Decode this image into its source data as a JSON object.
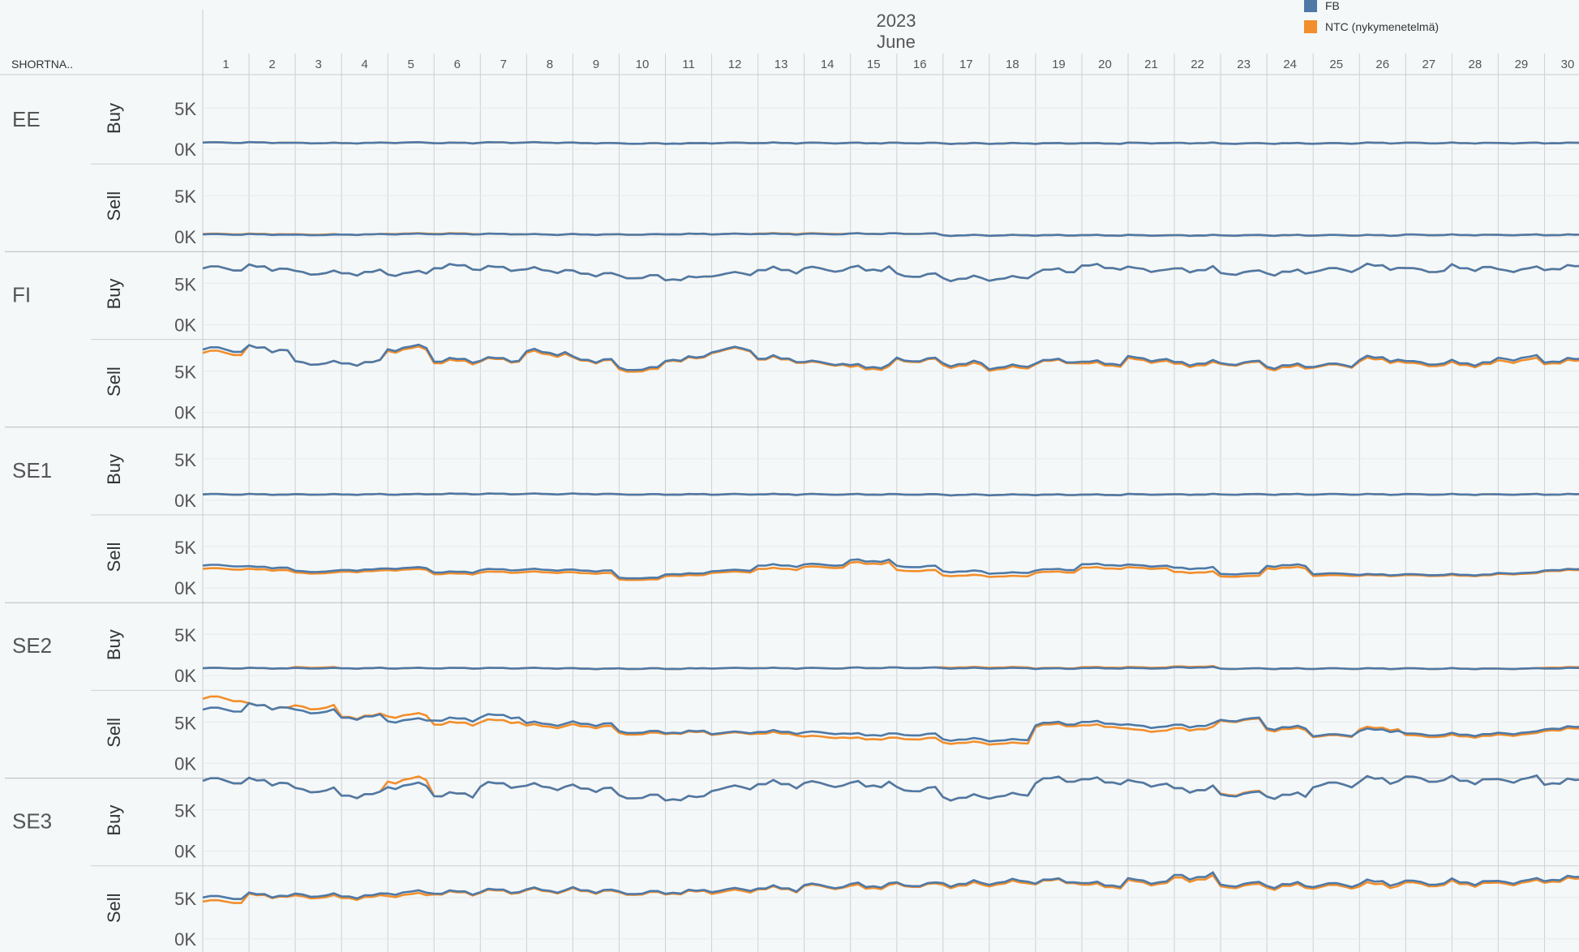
{
  "chart_data": {
    "type": "line",
    "title": "",
    "header_year": "2023",
    "header_month": "June",
    "row_field_label": "SHORTNA..",
    "days": [
      "1",
      "2",
      "3",
      "4",
      "5",
      "6",
      "7",
      "8",
      "9",
      "10",
      "11",
      "12",
      "13",
      "14",
      "15",
      "16",
      "17",
      "18",
      "19",
      "20",
      "21",
      "22",
      "23",
      "24",
      "25",
      "26",
      "27",
      "28",
      "29",
      "30"
    ],
    "y_ticks": [
      "5K",
      "0K"
    ],
    "y_range": [
      0,
      10000
    ],
    "legend": [
      {
        "name": "FB",
        "color": "#4e79a7"
      },
      {
        "name": "NTC (nykymenetelmä)",
        "color": "#f28e2b"
      }
    ],
    "series_colors": {
      "FB": "#4e79a7",
      "NTC": "#f28e2b"
    },
    "panels": [
      {
        "area": "EE",
        "direction": "Buy",
        "fb_daily": [
          800,
          800,
          750,
          750,
          800,
          750,
          800,
          800,
          750,
          700,
          700,
          750,
          750,
          750,
          750,
          750,
          700,
          700,
          700,
          700,
          750,
          750,
          700,
          700,
          700,
          750,
          750,
          750,
          750,
          750
        ],
        "ntc_daily": [
          800,
          800,
          750,
          750,
          800,
          750,
          800,
          800,
          750,
          700,
          700,
          750,
          750,
          750,
          750,
          750,
          700,
          700,
          700,
          700,
          750,
          750,
          700,
          700,
          700,
          750,
          750,
          750,
          750,
          750
        ]
      },
      {
        "area": "EE",
        "direction": "Sell",
        "fb_daily": [
          300,
          300,
          250,
          300,
          350,
          350,
          350,
          300,
          300,
          300,
          350,
          350,
          350,
          350,
          400,
          400,
          200,
          200,
          200,
          200,
          200,
          200,
          200,
          200,
          200,
          200,
          250,
          250,
          250,
          250
        ],
        "ntc_daily": [
          350,
          350,
          300,
          300,
          400,
          400,
          350,
          300,
          300,
          300,
          350,
          350,
          400,
          400,
          400,
          400,
          200,
          200,
          200,
          200,
          200,
          200,
          200,
          200,
          200,
          200,
          250,
          250,
          250,
          250
        ]
      },
      {
        "area": "FI",
        "direction": "Buy",
        "fb_daily": [
          6800,
          6900,
          6300,
          6300,
          6200,
          7000,
          6800,
          6600,
          6200,
          5800,
          5600,
          6100,
          6600,
          6700,
          6800,
          6000,
          5600,
          5600,
          6500,
          7000,
          6700,
          6700,
          6300,
          6300,
          6600,
          7000,
          6600,
          6900,
          6700,
          6900
        ],
        "ntc_daily": [
          6800,
          6900,
          6300,
          6300,
          6200,
          7000,
          6800,
          6600,
          6200,
          5800,
          5600,
          6100,
          6600,
          6700,
          6800,
          6000,
          5600,
          5600,
          6500,
          7000,
          6700,
          6700,
          6300,
          6300,
          6600,
          7000,
          6600,
          6900,
          6700,
          6900
        ]
      },
      {
        "area": "FI",
        "direction": "Sell",
        "fb_daily": [
          7600,
          7700,
          6000,
          6000,
          7800,
          6300,
          6400,
          7300,
          6400,
          5300,
          6500,
          7600,
          6500,
          6000,
          5600,
          6400,
          5900,
          5500,
          6200,
          6000,
          6500,
          6000,
          6000,
          5600,
          5700,
          6500,
          6000,
          6000,
          6600,
          6300
        ],
        "ntc_daily": [
          7200,
          7700,
          6000,
          6000,
          7600,
          6100,
          6300,
          7100,
          6300,
          5100,
          6400,
          7500,
          6400,
          5900,
          5400,
          6300,
          5700,
          5300,
          6100,
          5800,
          6300,
          5800,
          5900,
          5400,
          5600,
          6300,
          5800,
          5800,
          6300,
          6100
        ]
      },
      {
        "area": "SE1",
        "direction": "Buy",
        "fb_daily": [
          700,
          700,
          700,
          700,
          700,
          750,
          750,
          750,
          750,
          700,
          700,
          700,
          700,
          700,
          700,
          700,
          650,
          650,
          650,
          650,
          700,
          700,
          700,
          700,
          700,
          700,
          700,
          700,
          700,
          700
        ],
        "ntc_daily": [
          700,
          700,
          700,
          700,
          700,
          750,
          750,
          750,
          750,
          700,
          700,
          700,
          700,
          700,
          700,
          700,
          650,
          650,
          650,
          650,
          700,
          700,
          700,
          700,
          700,
          700,
          700,
          700,
          700,
          700
        ]
      },
      {
        "area": "SE1",
        "direction": "Sell",
        "fb_daily": [
          2700,
          2500,
          2000,
          2200,
          2400,
          1900,
          2200,
          2200,
          2100,
          1200,
          1700,
          2100,
          2700,
          2800,
          3300,
          2600,
          2000,
          1800,
          2200,
          2800,
          2700,
          2400,
          1700,
          2700,
          1700,
          1600,
          1600,
          1600,
          1800,
          2200
        ],
        "ntc_daily": [
          2300,
          2200,
          1800,
          2000,
          2200,
          1700,
          1900,
          1900,
          1800,
          1000,
          1500,
          1900,
          2300,
          2500,
          3000,
          2100,
          1500,
          1400,
          1900,
          2400,
          2400,
          1900,
          1400,
          2400,
          1500,
          1500,
          1500,
          1500,
          1700,
          2100
        ]
      },
      {
        "area": "SE2",
        "direction": "Buy",
        "fb_daily": [
          900,
          900,
          900,
          900,
          900,
          900,
          900,
          900,
          850,
          850,
          850,
          900,
          900,
          900,
          950,
          950,
          900,
          900,
          850,
          900,
          900,
          1000,
          850,
          850,
          850,
          850,
          850,
          850,
          850,
          900
        ],
        "ntc_daily": [
          900,
          900,
          1000,
          900,
          900,
          900,
          900,
          900,
          850,
          850,
          850,
          900,
          900,
          900,
          950,
          950,
          1000,
          1000,
          900,
          1000,
          1000,
          1100,
          850,
          850,
          850,
          850,
          850,
          850,
          850,
          1000
        ]
      },
      {
        "area": "SE2",
        "direction": "Sell",
        "fb_daily": [
          6500,
          6900,
          6300,
          5600,
          5200,
          5300,
          5700,
          4800,
          4800,
          3800,
          3800,
          3700,
          3800,
          3700,
          3500,
          3500,
          2900,
          2800,
          4800,
          4900,
          4500,
          4600,
          5300,
          4300,
          3400,
          4000,
          3500,
          3500,
          3700,
          4300
        ],
        "ntc_daily": [
          7800,
          6900,
          6800,
          5700,
          5800,
          4800,
          5100,
          4500,
          4500,
          3600,
          3700,
          3600,
          3600,
          3200,
          3000,
          3000,
          2500,
          2400,
          4600,
          4500,
          4000,
          4200,
          5200,
          4100,
          3300,
          4200,
          3300,
          3300,
          3500,
          4100
        ]
      },
      {
        "area": "SE3",
        "direction": "Buy",
        "fb_daily": [
          8500,
          8400,
          7400,
          6800,
          7900,
          6800,
          8000,
          7800,
          7600,
          6600,
          6400,
          7600,
          8100,
          8100,
          8100,
          7500,
          6500,
          6700,
          8600,
          8500,
          8200,
          7500,
          6900,
          6700,
          8000,
          8600,
          8700,
          8600,
          8700,
          8400
        ],
        "ntc_daily": [
          8500,
          8400,
          7400,
          6800,
          8600,
          6800,
          8000,
          7800,
          7600,
          6600,
          6400,
          7600,
          8100,
          8100,
          8100,
          7500,
          6500,
          6700,
          8600,
          8500,
          8200,
          7500,
          7000,
          6700,
          8000,
          8600,
          8700,
          8600,
          8700,
          8400
        ]
      },
      {
        "area": "SE3",
        "direction": "Sell",
        "fb_daily": [
          5000,
          5300,
          5300,
          5200,
          5600,
          5600,
          5800,
          5900,
          5900,
          5600,
          5700,
          5900,
          6100,
          6400,
          6500,
          6600,
          6700,
          6900,
          7000,
          6600,
          7000,
          7600,
          6600,
          6500,
          6500,
          6800,
          6800,
          6900,
          7000,
          7300
        ],
        "ntc_daily": [
          4500,
          5200,
          5100,
          5000,
          5300,
          5500,
          5700,
          5800,
          5800,
          5500,
          5600,
          5700,
          6000,
          6300,
          6300,
          6500,
          6500,
          6700,
          6900,
          6400,
          6800,
          7300,
          6400,
          6300,
          6300,
          6500,
          6600,
          6700,
          6800,
          7100
        ]
      }
    ]
  }
}
